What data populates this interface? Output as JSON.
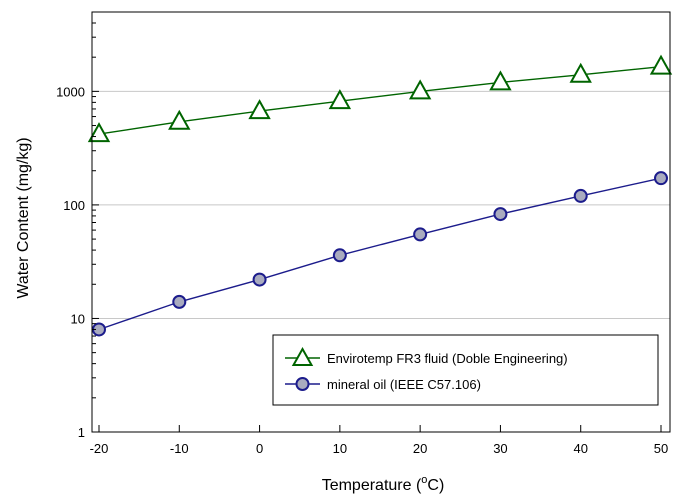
{
  "chart_data": {
    "type": "line",
    "xlabel_main": "Temperature (",
    "xlabel_sup": "o",
    "xlabel_end": "C)",
    "ylabel": "Water Content (mg/kg)",
    "x": [
      -20,
      -10,
      0,
      10,
      20,
      30,
      40,
      50
    ],
    "x_ticks": [
      -20,
      -10,
      0,
      10,
      20,
      30,
      40,
      50
    ],
    "x_tick_labels": [
      "-20",
      "-10",
      "0",
      "10",
      "20",
      "30",
      "40",
      "50"
    ],
    "xlim": [
      -20,
      50
    ],
    "y_scale": "log",
    "ylim": [
      1,
      5000
    ],
    "y_ticks": [
      1,
      10,
      100,
      1000
    ],
    "y_tick_labels": [
      "1",
      "10",
      "100",
      "1000"
    ],
    "grid": "horizontal",
    "legend_position": "bottom-right",
    "series": [
      {
        "name": "Envirotemp FR3 fluid (Doble Engineering)",
        "marker": "triangle",
        "color": "#006400",
        "fill": "#ffffff",
        "values": [
          420,
          540,
          670,
          820,
          1000,
          1200,
          1400,
          1650
        ]
      },
      {
        "name": "mineral oil (IEEE C57.106)",
        "marker": "circle",
        "color": "#1c1c8c",
        "fill": "#a9abbf",
        "values": [
          8,
          14,
          22,
          36,
          55,
          83,
          120,
          172
        ]
      }
    ]
  }
}
